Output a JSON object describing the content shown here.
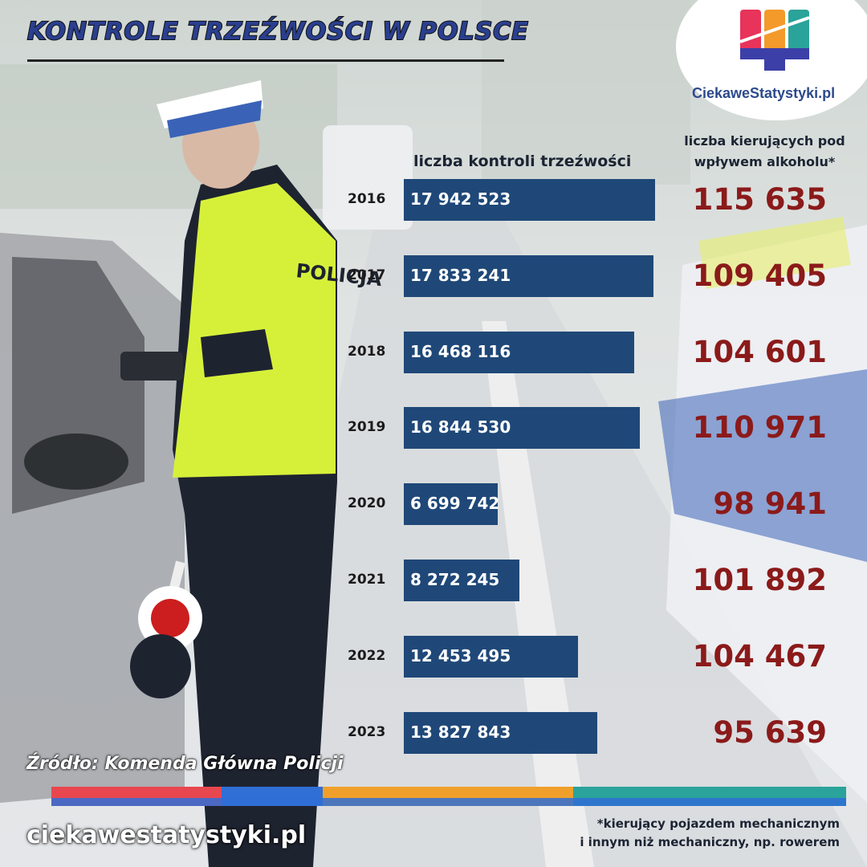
{
  "title": "KONTROLE TRZEŹWOŚCI W POLSCE",
  "logo": {
    "text": "CiekaweStatystyki.pl"
  },
  "colors": {
    "bar": "#1f4878",
    "drunk_value": "#8b1a1a",
    "stripe": [
      "#e8474f",
      "#2f6fd6",
      "#f0a02a",
      "#2aa39a"
    ]
  },
  "chart_data": {
    "type": "bar",
    "orientation": "horizontal",
    "categories": [
      "2016",
      "2017",
      "2018",
      "2019",
      "2020",
      "2021",
      "2022",
      "2023"
    ],
    "series": [
      {
        "name": "liczba kontroli trzeźwości",
        "values": [
          17942523,
          17833241,
          16468116,
          16844530,
          6699742,
          8272245,
          12453495,
          13827843
        ],
        "labels": [
          "17 942 523",
          "17 833 241",
          "16 468 116",
          "16 844 530",
          "6 699 742",
          "8 272 245",
          "12 453 495",
          "13 827 843"
        ]
      },
      {
        "name": "liczba kierujących pod wpływem alkoholu*",
        "values": [
          115635,
          109405,
          104601,
          110971,
          98941,
          101892,
          104467,
          95639
        ],
        "labels": [
          "115 635",
          "109 405",
          "104 601",
          "110 971",
          "98 941",
          "101 892",
          "104 467",
          "95 639"
        ]
      }
    ]
  },
  "headers": {
    "controls": "liczba kontroli trzeźwości",
    "drunk_line1": "liczba kierujących pod",
    "drunk_line2": "wpływem alkoholu*"
  },
  "source": "Źródło: Komenda Główna Policji",
  "website": "ciekawestatystyki.pl",
  "footnote": {
    "line1": "*kierujący pojazdem mechanicznym",
    "line2": "i innym niż mechaniczny, np. rowerem"
  }
}
